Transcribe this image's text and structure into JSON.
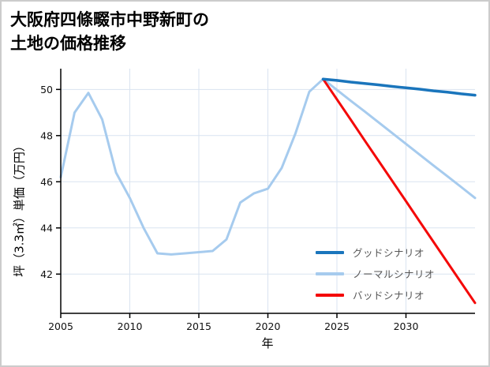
{
  "page": {
    "title": "大阪府四條畷市中野新町の\n土地の価格推移"
  },
  "chart_data": {
    "type": "line",
    "title": "大阪府四條畷市中野新町の土地の価格推移",
    "xlabel": "年",
    "ylabel": "坪（3.3㎡）単価（万円）",
    "xlim": [
      2005,
      2035
    ],
    "ylim": [
      40.3,
      50.9
    ],
    "xticks": [
      2005,
      2010,
      2015,
      2020,
      2025,
      2030
    ],
    "yticks": [
      42,
      44,
      46,
      48,
      50
    ],
    "grid": true,
    "grid_color": "#d9e3f0",
    "axis_color": "#000000",
    "background_color": "#ffffff",
    "legend_position": "inside lower right",
    "series": [
      {
        "name": "ノーマルシナリオ",
        "color": "#a6cbee",
        "width": 3,
        "x": [
          2005,
          2006,
          2007,
          2008,
          2009,
          2010,
          2011,
          2012,
          2013,
          2014,
          2015,
          2016,
          2017,
          2018,
          2019,
          2020,
          2021,
          2022,
          2023,
          2024,
          2025,
          2026,
          2027,
          2028,
          2029,
          2030,
          2031,
          2032,
          2033,
          2034,
          2035
        ],
        "values": [
          46.2,
          49.0,
          49.85,
          48.7,
          46.4,
          45.3,
          44.0,
          42.9,
          42.85,
          42.9,
          42.95,
          43.0,
          43.5,
          45.1,
          45.5,
          45.7,
          46.6,
          48.1,
          49.9,
          50.45,
          49.98,
          49.51,
          49.05,
          48.58,
          48.11,
          47.64,
          47.17,
          46.7,
          46.24,
          45.77,
          45.3
        ]
      },
      {
        "name": "バッドシナリオ",
        "color": "#f40808",
        "width": 3,
        "x": [
          2024,
          2025,
          2026,
          2027,
          2028,
          2029,
          2030,
          2031,
          2032,
          2033,
          2034,
          2035
        ],
        "values": [
          50.45,
          49.57,
          48.69,
          47.8,
          46.92,
          46.04,
          45.16,
          44.27,
          43.39,
          42.51,
          41.63,
          40.75
        ]
      },
      {
        "name": "グッドシナリオ",
        "color": "#1a75bc",
        "width": 3.5,
        "x": [
          2024,
          2025,
          2026,
          2027,
          2028,
          2029,
          2030,
          2031,
          2032,
          2033,
          2034,
          2035
        ],
        "values": [
          50.45,
          50.39,
          50.32,
          50.26,
          50.2,
          50.13,
          50.07,
          50.01,
          49.94,
          49.88,
          49.81,
          49.75
        ]
      }
    ],
    "legend": [
      {
        "label": "グッドシナリオ",
        "color": "#1a75bc"
      },
      {
        "label": "ノーマルシナリオ",
        "color": "#a6cbee"
      },
      {
        "label": "バッドシナリオ",
        "color": "#f40808"
      }
    ]
  }
}
